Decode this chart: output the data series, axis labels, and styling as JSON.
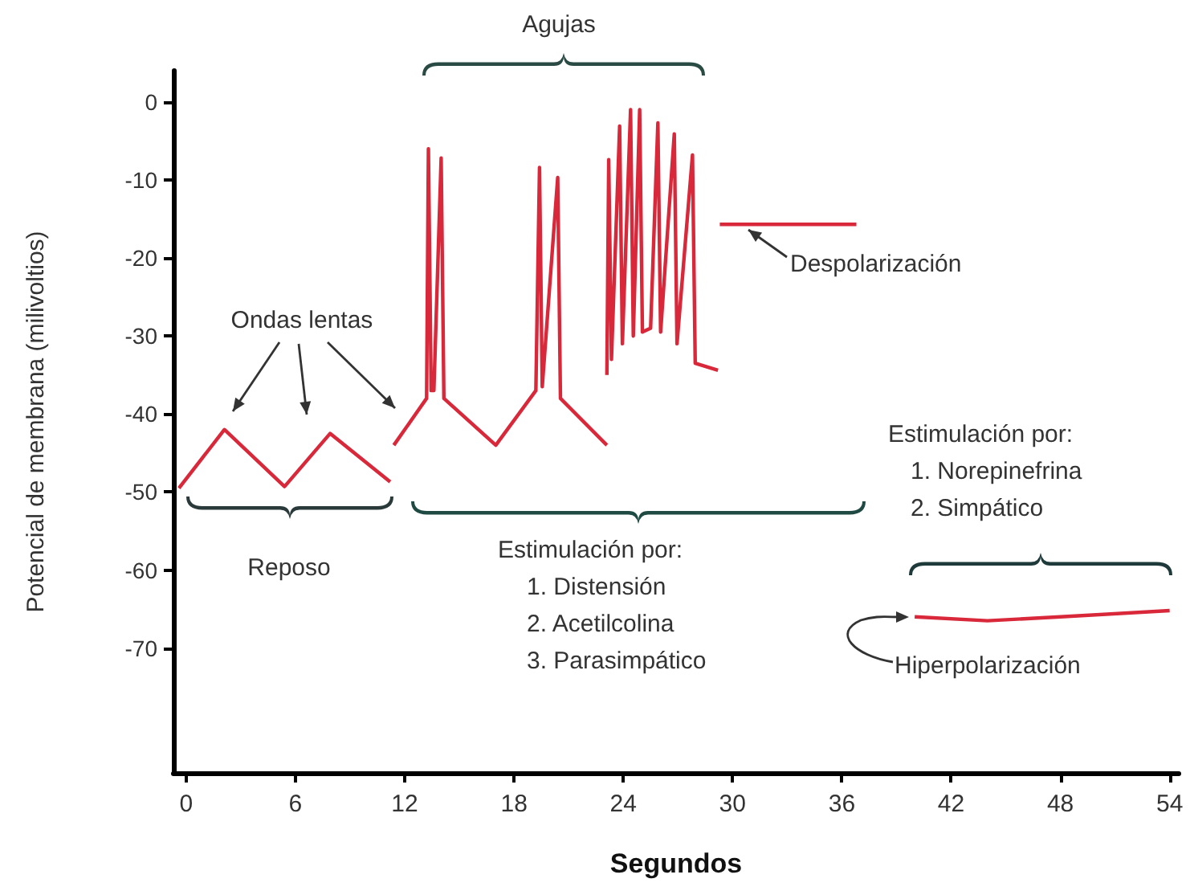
{
  "chart_data": {
    "type": "line",
    "xlabel": "Segundos",
    "ylabel": "Potencial de membrana (milivoltios)",
    "annotations": [
      "Agujas",
      "Ondas lentas",
      "Reposo",
      "Estimulación por:\n1. Distensión\n2. Acetilcolina\n3. Parasimpático",
      "Despolarización",
      "Estimulación por:\n1. Norepinefrina\n2. Simpático",
      "Hiperpolarización"
    ],
    "series": [
      {
        "color": "#d8283a",
        "x": [
          -0.4,
          2.1,
          5.4,
          7.9,
          11.2
        ],
        "values": [
          -49.5,
          -42,
          -49.3,
          -42.5,
          -48.7
        ]
      },
      {
        "color": "#d8283a",
        "x": [
          11.4,
          13.2,
          13.3,
          13.45,
          13.6,
          14.0,
          14.15,
          17,
          19.2,
          19.4,
          19.55,
          20.4,
          20.55,
          23.1
        ],
        "values": [
          -44,
          -38,
          -6,
          -37,
          -37,
          -7.2,
          -38,
          -44,
          -37,
          -8.4,
          -36.5,
          -9.7,
          -38,
          -44
        ]
      },
      {
        "color": "#d8283a",
        "x": [
          23.1,
          23.2,
          23.35,
          23.8,
          23.95,
          24.4,
          24.55,
          24.9,
          25.05,
          25.5,
          25.9,
          26.05,
          26.8,
          26.95,
          27.8,
          27.95,
          29.2
        ],
        "values": [
          -35,
          -7.4,
          -33,
          -3.1,
          -31,
          -1,
          -30,
          -1,
          -29.5,
          -29,
          -2.7,
          -29.5,
          -4.1,
          -31,
          -6.8,
          -33.5,
          -34.4
        ]
      },
      {
        "color": "#d8283a",
        "x": [
          29.3,
          36.8
        ],
        "values": [
          -15.7,
          -15.7
        ]
      },
      {
        "color": "#d8283a",
        "x": [
          40,
          44,
          48,
          54
        ],
        "values": [
          -66,
          -66.5,
          -66,
          -65.2
        ]
      }
    ],
    "xlim": [
      -0.7,
      54.5
    ],
    "ylim": [
      -86,
      4
    ],
    "xticks": [
      0,
      6,
      12,
      18,
      24,
      30,
      36,
      42,
      48,
      54
    ],
    "yticks": [
      0,
      -10,
      -20,
      -30,
      -40,
      -50,
      -60,
      -70
    ],
    "grid": false,
    "marker": "none"
  }
}
